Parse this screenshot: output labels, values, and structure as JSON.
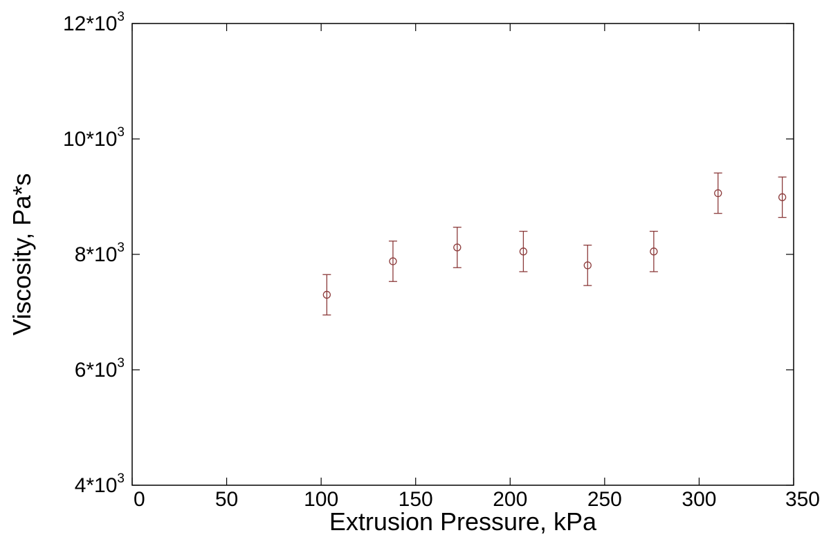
{
  "chart_data": {
    "type": "scatter",
    "title": "",
    "xlabel": "Extrusion Pressure, kPa",
    "ylabel": "Viscosity, Pa*s",
    "xlim": [
      0,
      350
    ],
    "ylim": [
      4000,
      12000
    ],
    "x_ticks": [
      0,
      50,
      100,
      150,
      200,
      250,
      300,
      350
    ],
    "y_ticks": [
      {
        "value": 4000,
        "base": "4*10",
        "exp": "3"
      },
      {
        "value": 6000,
        "base": "6*10",
        "exp": "3"
      },
      {
        "value": 8000,
        "base": "8*10",
        "exp": "3"
      },
      {
        "value": 10000,
        "base": "10*10",
        "exp": "3"
      },
      {
        "value": 12000,
        "base": "12*10",
        "exp": "3"
      }
    ],
    "grid": false,
    "series": [
      {
        "marker": "open-circle",
        "color": "#8b3a3a",
        "points": [
          {
            "x": 103,
            "y": 7300,
            "err": 350
          },
          {
            "x": 138,
            "y": 7880,
            "err": 350
          },
          {
            "x": 172,
            "y": 8120,
            "err": 350
          },
          {
            "x": 207,
            "y": 8050,
            "err": 350
          },
          {
            "x": 241,
            "y": 7810,
            "err": 350
          },
          {
            "x": 276,
            "y": 8050,
            "err": 350
          },
          {
            "x": 310,
            "y": 9060,
            "err": 350
          },
          {
            "x": 344,
            "y": 8990,
            "err": 350
          }
        ]
      }
    ]
  }
}
